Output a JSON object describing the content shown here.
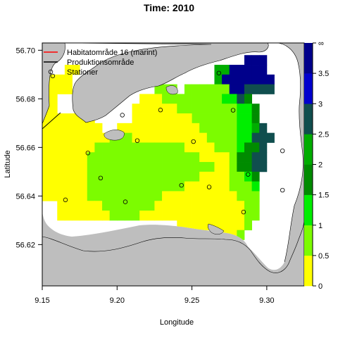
{
  "chart_data": {
    "type": "heatmap",
    "title": "Time: 2010",
    "xlabel": "Longitude",
    "ylabel": "Latitude",
    "xlim": [
      9.15,
      9.325
    ],
    "ylim": [
      56.603,
      56.703
    ],
    "xticks": [
      "9.15",
      "9.20",
      "9.25",
      "9.30"
    ],
    "yticks": [
      "56.62",
      "56.64",
      "56.66",
      "56.68",
      "56.70"
    ],
    "legend": {
      "position": "top-left",
      "entries": [
        {
          "label": "Habitatområde 16 (marint)",
          "kind": "line",
          "color": "#ff0000"
        },
        {
          "label": "Produktionsområde",
          "kind": "line",
          "color": "#000000"
        },
        {
          "label": "Stationer",
          "kind": "point",
          "color": "#000000"
        }
      ]
    },
    "colorbar": {
      "ticks": [
        "0",
        "0.5",
        "1",
        "1.5",
        "2",
        "2.5",
        "3",
        "3.5",
        "∞"
      ],
      "bands": [
        {
          "from": 0,
          "to": 0.5,
          "color": "#ffff00"
        },
        {
          "from": 0.5,
          "to": 1.0,
          "color": "#7cfc00"
        },
        {
          "from": 1.0,
          "to": 1.5,
          "color": "#00ee00"
        },
        {
          "from": 1.5,
          "to": 2.0,
          "color": "#008b00"
        },
        {
          "from": 2.0,
          "to": 2.5,
          "color": "#00ad00"
        },
        {
          "from": 2.5,
          "to": 3.0,
          "color": "#104e4e"
        },
        {
          "from": 3.0,
          "to": 3.5,
          "color": "#0000cd"
        },
        {
          "from": 3.5,
          "to": 4.0,
          "color": "#00008b"
        }
      ]
    },
    "grid_x_edges": [
      9.15,
      9.155,
      9.16,
      9.165,
      9.17,
      9.175,
      9.18,
      9.185,
      9.19,
      9.195,
      9.2,
      9.205,
      9.21,
      9.215,
      9.22,
      9.225,
      9.23,
      9.235,
      9.24,
      9.245,
      9.25,
      9.255,
      9.26,
      9.265,
      9.27,
      9.275,
      9.28,
      9.285,
      9.29,
      9.295,
      9.3,
      9.305,
      9.31,
      9.315
    ],
    "grid_y_edges": [
      56.622,
      56.626,
      56.63,
      56.634,
      56.638,
      56.642,
      56.646,
      56.65,
      56.654,
      56.658,
      56.662,
      56.666,
      56.67,
      56.674,
      56.678,
      56.682,
      56.686,
      56.69,
      56.694,
      56.698,
      56.702
    ],
    "rows_top_to_bottom": [
      "..................................",
      "...........................777....",
      "...YY..................5577777....",
      "YYYY...................57777777...",
      "YYYY...........GGG.GGGGGG776666...",
      "YY...........YYYGGGGGGGG3364......",
      "YY..........YYYYYYGGGGGGGG334.....",
      "YYYYYYY.....YYYYYYYYGGGGGG334.....",
      "YYYYYYYY..YYYYYYYYYYYGGGGG3356....",
      "YYYYYYYYYGGGYYYYYYYYYYGGGG33666...",
      "YYYYYYYGGGGGGGGGGGGYYYYGGG3446....",
      "YYYYYYGGGGGGGGGGGGGGGYYYYG4466....",
      "YYYYYYGGGGGGGGGGGGGGGGGYYG4466....",
      "YYYYYYGGGGGGGGGGGGGGGYYYYGG34.....",
      "YYYYYYGGGGGGGGGGGGGYYYYYYGGG3.....",
      "YYYYYYGGGGGGGGGGYYYYYYYYYYGGG.....",
      "..YYYYYYGGGGGGGYYYYYYYYYYYYGG.....",
      "..YYYYYYYGGGGYYYYYYYYYYYYYYGG.....",
      "..................YYYYYYYYYG......",
      "........................YYG......."
    ],
    "stations": [
      {
        "lon": 9.157,
        "lat": 56.6894
      },
      {
        "lon": 9.2035,
        "lat": 56.6733
      },
      {
        "lon": 9.229,
        "lat": 56.6754
      },
      {
        "lon": 9.268,
        "lat": 56.6906
      },
      {
        "lon": 9.2775,
        "lat": 56.6753
      },
      {
        "lon": 9.2135,
        "lat": 56.6628
      },
      {
        "lon": 9.251,
        "lat": 56.6624
      },
      {
        "lon": 9.1805,
        "lat": 56.6577
      },
      {
        "lon": 9.3105,
        "lat": 56.6586
      },
      {
        "lon": 9.2875,
        "lat": 56.6489
      },
      {
        "lon": 9.189,
        "lat": 56.6474
      },
      {
        "lon": 9.243,
        "lat": 56.6444
      },
      {
        "lon": 9.2615,
        "lat": 56.6437
      },
      {
        "lon": 9.3105,
        "lat": 56.6424
      },
      {
        "lon": 9.1655,
        "lat": 56.6384
      },
      {
        "lon": 9.2055,
        "lat": 56.6376
      },
      {
        "lon": 9.2845,
        "lat": 56.6334
      }
    ]
  }
}
